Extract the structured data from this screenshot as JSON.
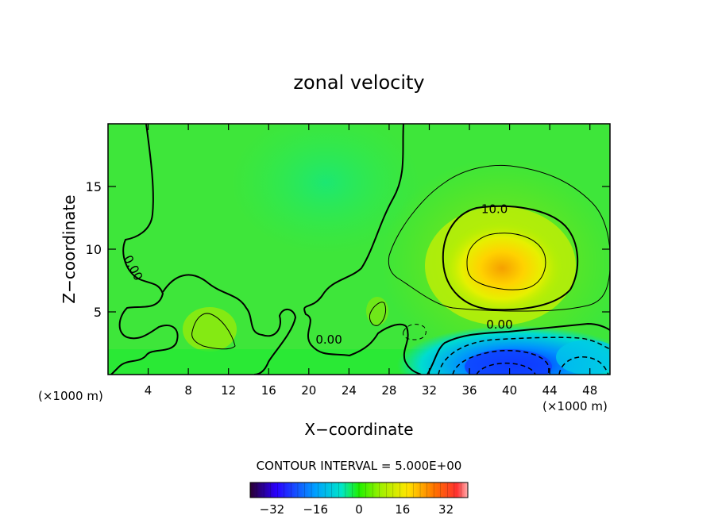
{
  "chart_data": {
    "type": "heatmap",
    "title": "zonal velocity",
    "xlabel": "X−coordinate",
    "ylabel": "Z−coordinate",
    "x_unit_left": "(×1000 m)",
    "x_unit_right": "(×1000 m)",
    "xlim": [
      0,
      50
    ],
    "ylim": [
      0,
      20
    ],
    "x_ticks": [
      4,
      8,
      12,
      16,
      20,
      24,
      28,
      32,
      36,
      40,
      44,
      48
    ],
    "y_ticks": [
      5,
      10,
      15
    ],
    "contour_interval_label": "CONTOUR INTERVAL = 5.000E+00",
    "colorbar": {
      "range": [
        -40,
        40
      ],
      "ticks": [
        -32,
        -16,
        0,
        16,
        32
      ],
      "tick_labels": [
        "−32",
        "−16",
        "0",
        "16",
        "32"
      ]
    },
    "contour_labels": [
      {
        "text": "10.0",
        "x": 38.5,
        "y": 13.2
      },
      {
        "text": "0.00",
        "x": 39.0,
        "y": 4.0
      },
      {
        "text": "0.00",
        "x": 2.5,
        "y": 8.5
      },
      {
        "text": "0.00",
        "x": 22.0,
        "y": 2.8
      }
    ],
    "features": [
      {
        "kind": "max",
        "x": 39.5,
        "y": 8.5,
        "value": 15
      },
      {
        "kind": "min",
        "x": 40.0,
        "y": 1.0,
        "value": -15
      }
    ]
  }
}
